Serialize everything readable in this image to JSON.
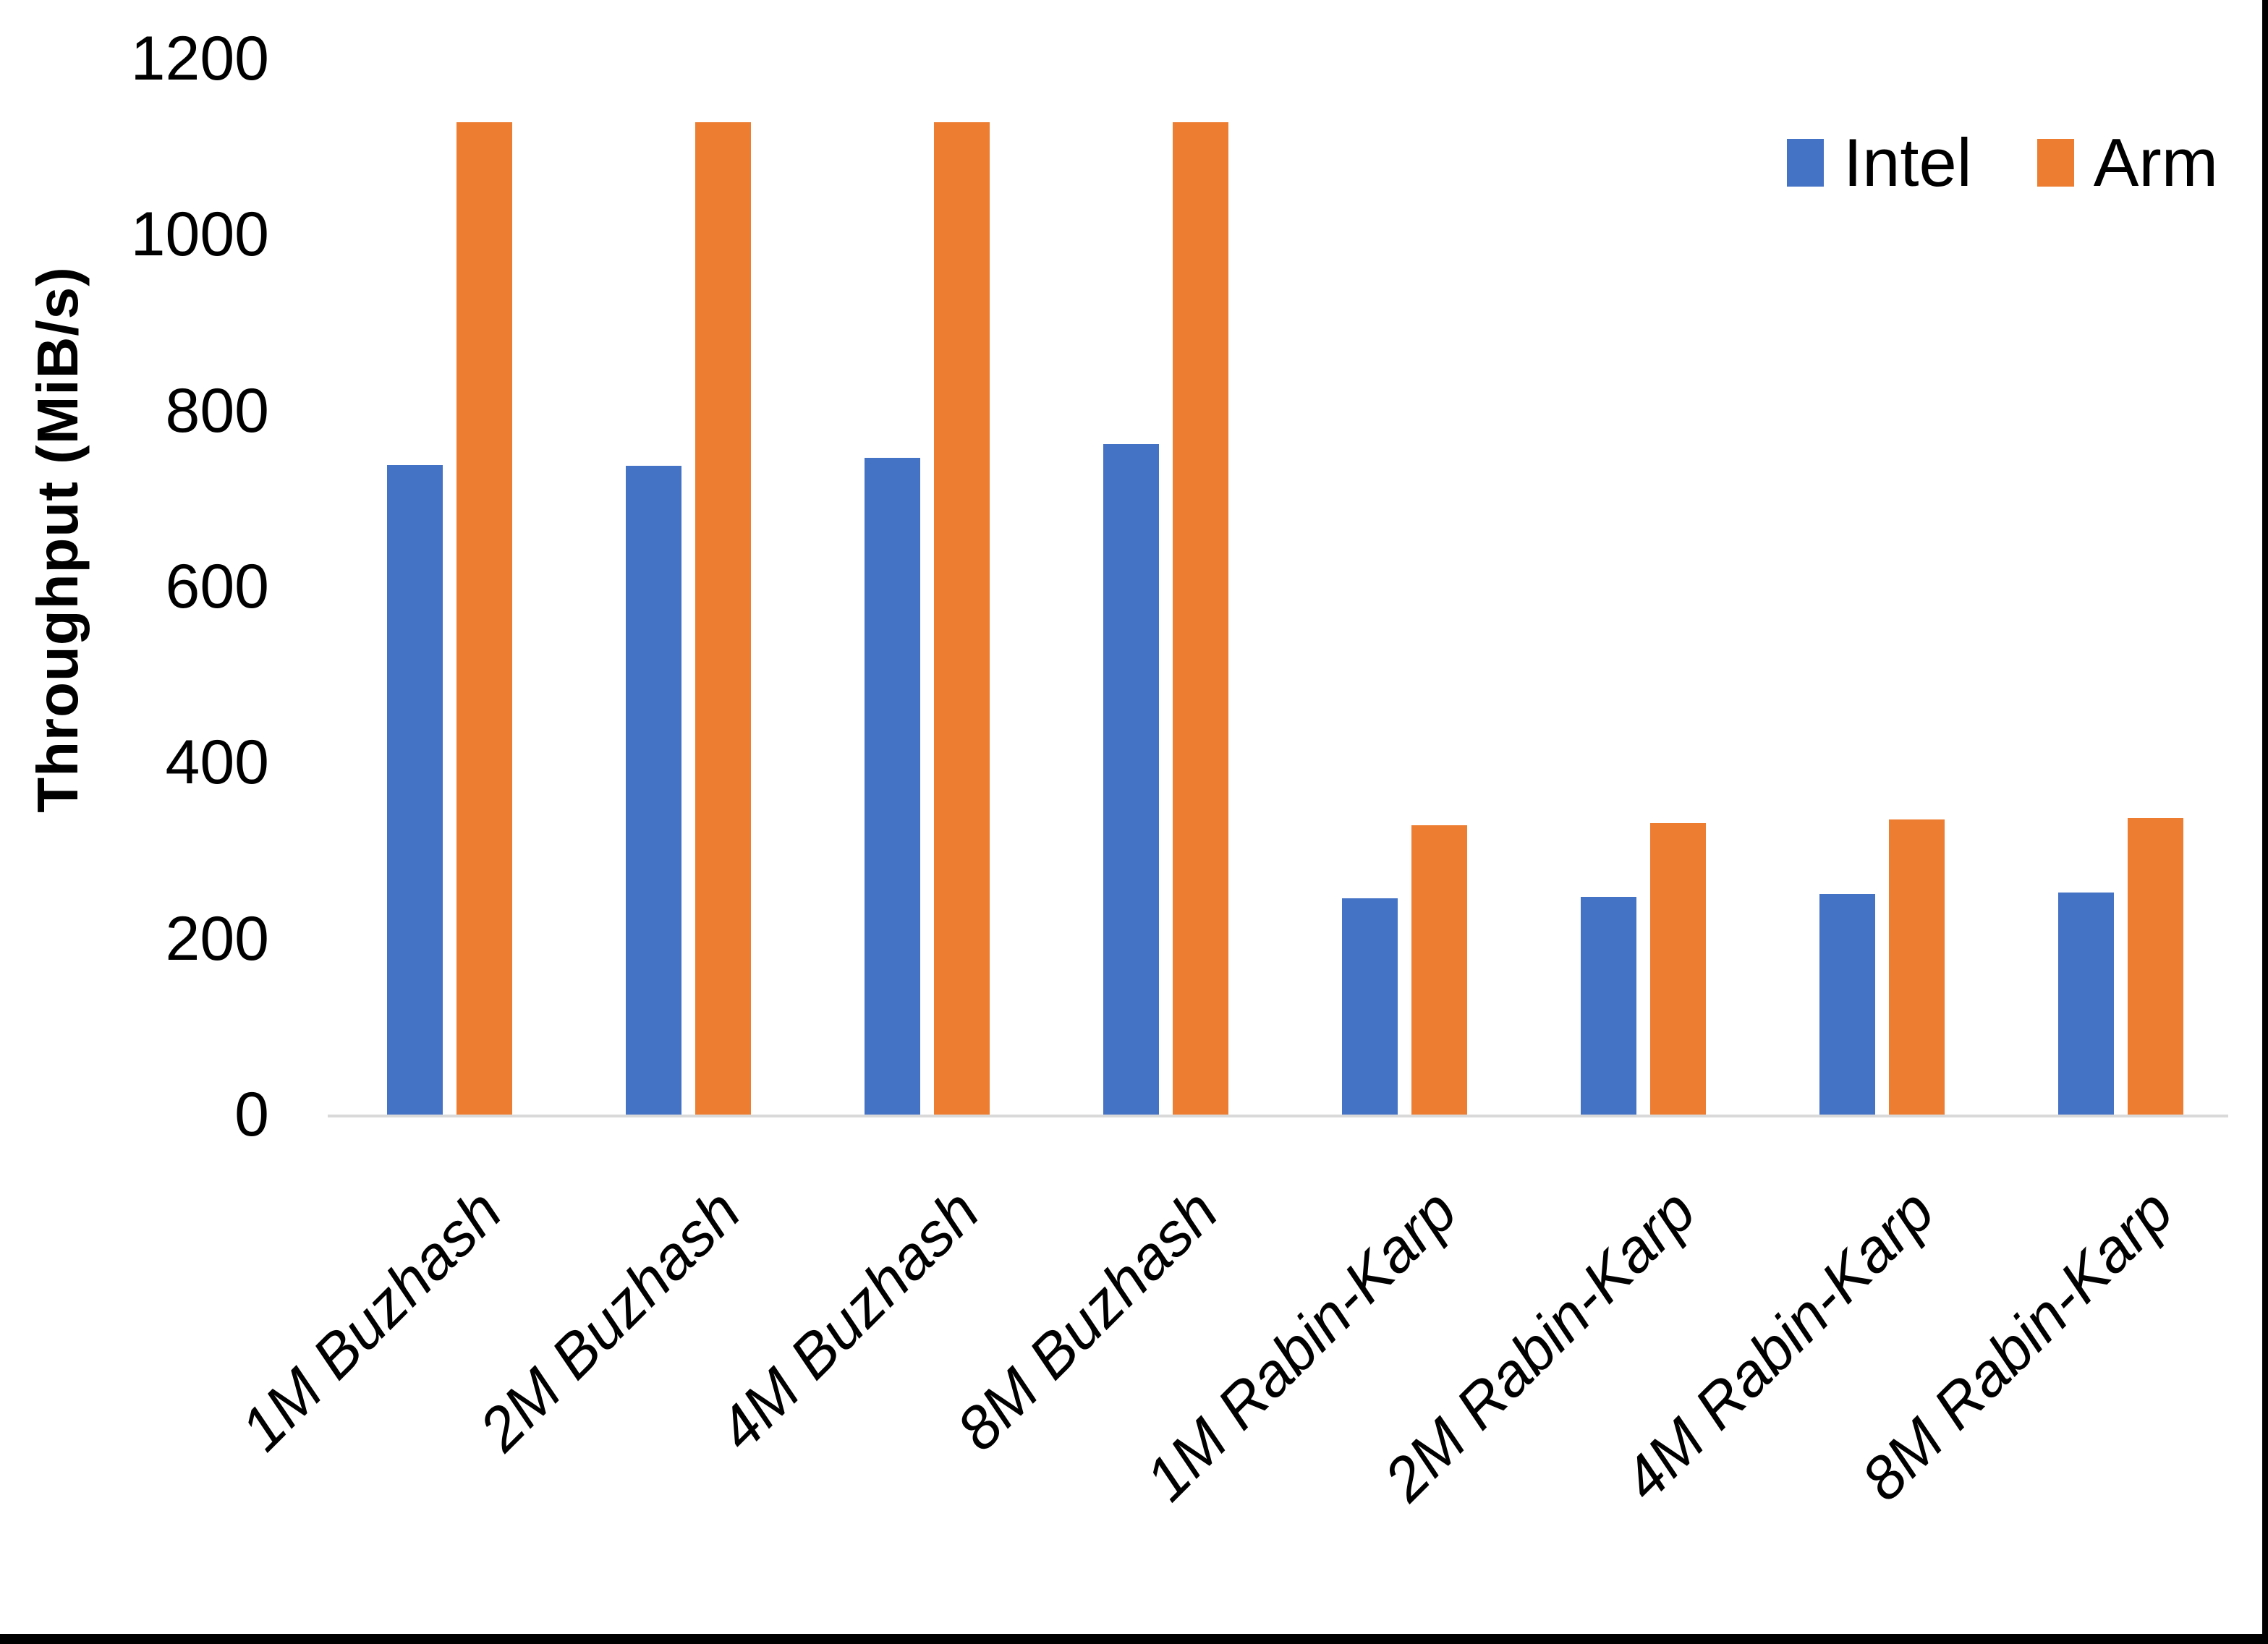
{
  "chart_data": {
    "type": "bar",
    "title": "",
    "ylabel": "Throughput (MiB/s)",
    "xlabel": "",
    "categories": [
      "1M Buzhash",
      "2M Buzhash",
      "4M Buzhash",
      "8M Buzhash",
      "1M Rabin-Karp",
      "2M Rabin-Karp",
      "4M Rabin-Karp",
      "8M Rabin-Karp"
    ],
    "series": [
      {
        "name": "Intel",
        "color": "#4472C4",
        "values": [
          738,
          737,
          746,
          762,
          246,
          247,
          251,
          252
        ]
      },
      {
        "name": "Arm",
        "color": "#ED7D31",
        "values": [
          1128,
          1128,
          1128,
          1128,
          329,
          331,
          335,
          337
        ]
      }
    ],
    "ylim": [
      0,
      1200
    ],
    "yticks": [
      "0",
      "200",
      "400",
      "600",
      "800",
      "1000",
      "1200"
    ],
    "grid": false,
    "legend_position": "top-right",
    "axis_line_color": "#D9D9D9"
  },
  "legend": {
    "items": [
      {
        "label": "Intel",
        "color": "#4472C4"
      },
      {
        "label": "Arm",
        "color": "#ED7D31"
      }
    ]
  }
}
